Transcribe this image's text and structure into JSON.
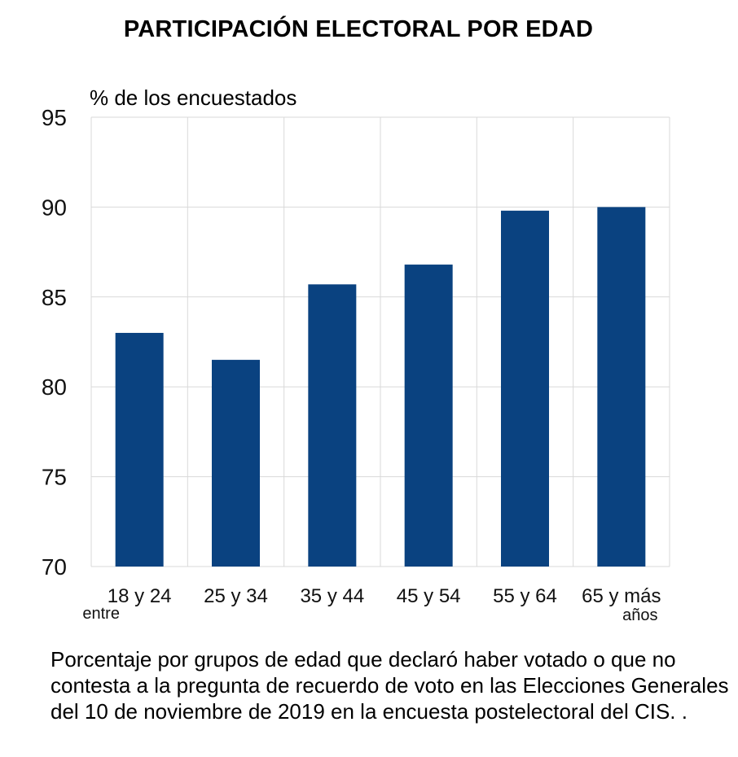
{
  "chart_data": {
    "type": "bar",
    "title": "PARTICIPACIÓN ELECTORAL POR EDAD",
    "ylabel": "% de los encuestados",
    "categories": [
      "18 y 24",
      "25 y 34",
      "35 y 44",
      "45 y 54",
      "55 y 64",
      "65 y más"
    ],
    "category_prefix": {
      "first": "entre"
    },
    "category_suffix": {
      "last": "años"
    },
    "values": [
      83.0,
      81.5,
      85.7,
      86.8,
      89.8,
      90.0
    ],
    "ylim": [
      70,
      95
    ],
    "yticks": [
      70,
      75,
      80,
      85,
      90,
      95
    ],
    "grid": true,
    "bar_color": "#0a4280",
    "grid_color": "#d9d9d9"
  },
  "caption": "Porcentaje por grupos de edad que declaró haber votado o que no contesta a la pregunta de recuerdo de voto en las Elecciones Generales del 10 de noviembre de 2019 en la encuesta postelectoral del CIS. ."
}
